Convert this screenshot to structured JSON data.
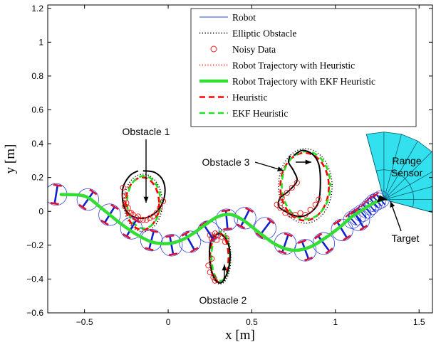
{
  "chart_data": {
    "type": "line",
    "title": "",
    "xlabel": "x [m]",
    "ylabel": "y [m]",
    "xlim": [
      -0.72,
      1.58
    ],
    "ylim": [
      -0.6,
      1.22
    ],
    "xticks": [
      -0.5,
      0,
      0.5,
      1,
      1.5
    ],
    "yticks": [
      -0.6,
      -0.4,
      -0.2,
      0,
      0.2,
      0.4,
      0.6,
      0.8,
      1,
      1.2
    ],
    "xtick_labels": [
      "−0.5",
      "0",
      "0.5",
      "1",
      "1.5"
    ],
    "ytick_labels": [
      "−0.6",
      "−0.4",
      "−0.2",
      "0",
      "0.2",
      "0.4",
      "0.6",
      "0.8",
      "1",
      "1.2"
    ],
    "grid": false,
    "legend_position": "top-right",
    "legend": [
      {
        "label": "Robot",
        "style": "thin-blue-line"
      },
      {
        "label": "Elliptic Obstacle",
        "style": "black-dotted"
      },
      {
        "label": "Noisy Data",
        "style": "red-circle"
      },
      {
        "label": "Robot Trajectory with Heuristic",
        "style": "red-dotted"
      },
      {
        "label": "Robot Trajectory with EKF Heuristic",
        "style": "green-thick"
      },
      {
        "label": "Heuristic",
        "style": "red-dashed"
      },
      {
        "label": "EKF Heuristic",
        "style": "green-dashed"
      }
    ],
    "annotations": [
      {
        "text": "Obstacle 1"
      },
      {
        "text": "Obstacle 2"
      },
      {
        "text": "Obstacle 3"
      },
      {
        "text": "Range"
      },
      {
        "text": "Sensor"
      },
      {
        "text": "Target"
      }
    ],
    "trajectory": {
      "x": [
        -0.64,
        -0.5,
        -0.4,
        -0.3,
        -0.2,
        -0.1,
        0.0,
        0.08,
        0.15,
        0.22,
        0.3,
        0.38,
        0.46,
        0.55,
        0.65,
        0.75,
        0.85,
        0.95,
        1.03,
        1.1,
        1.18,
        1.23,
        1.28
      ],
      "y": [
        0.1,
        0.09,
        0.02,
        -0.06,
        -0.13,
        -0.18,
        -0.19,
        -0.17,
        -0.13,
        -0.08,
        -0.03,
        -0.02,
        -0.06,
        -0.13,
        -0.2,
        -0.23,
        -0.21,
        -0.15,
        -0.09,
        -0.03,
        0.02,
        0.05,
        0.07
      ]
    },
    "robot_positions": {
      "x": [
        -0.67,
        -0.48,
        -0.35,
        -0.22,
        -0.1,
        0.02,
        0.13,
        0.24,
        0.35,
        0.46,
        0.58,
        0.7,
        0.82,
        0.93,
        1.04,
        1.14
      ],
      "y": [
        0.1,
        0.07,
        -0.02,
        -0.1,
        -0.17,
        -0.2,
        -0.18,
        -0.12,
        -0.05,
        -0.04,
        -0.1,
        -0.19,
        -0.23,
        -0.19,
        -0.11,
        -0.05
      ]
    },
    "robot_radius": 0.065,
    "arc_robots": {
      "x": [
        1.1,
        1.13,
        1.16,
        1.19,
        1.21,
        1.23,
        1.25,
        1.27
      ],
      "y": [
        -0.05,
        -0.03,
        -0.01,
        0.01,
        0.03,
        0.05,
        0.06,
        0.07
      ]
    },
    "obstacle1": {
      "center": [
        -0.15,
        0.05
      ],
      "true_shape_x": [
        -0.15,
        -0.08,
        -0.03,
        -0.02,
        -0.05,
        -0.11,
        -0.18,
        -0.24,
        -0.27,
        -0.27,
        -0.23,
        -0.18
      ],
      "true_shape_y": [
        0.24,
        0.23,
        0.18,
        0.1,
        0.02,
        -0.03,
        -0.04,
        -0.01,
        0.05,
        0.14,
        0.21,
        0.24
      ],
      "noisy_x": [
        -0.27,
        -0.26,
        -0.25,
        -0.24,
        -0.23,
        -0.21,
        -0.19,
        -0.17,
        -0.15,
        -0.13,
        -0.11,
        -0.09,
        -0.07,
        -0.05,
        -0.03,
        -0.26,
        -0.22,
        -0.18
      ],
      "noisy_y": [
        0.14,
        0.09,
        0.05,
        0.02,
        -0.01,
        -0.02,
        -0.04,
        -0.05,
        -0.05,
        -0.05,
        -0.04,
        -0.03,
        -0.01,
        0.02,
        0.06,
        0.03,
        -0.01,
        -0.03
      ]
    },
    "obstacle2": {
      "center": [
        0.31,
        -0.27
      ],
      "true_shape_x": [
        0.31,
        0.35,
        0.37,
        0.36,
        0.33,
        0.3,
        0.27,
        0.25,
        0.25,
        0.27,
        0.31
      ],
      "true_shape_y": [
        -0.13,
        -0.17,
        -0.25,
        -0.34,
        -0.41,
        -0.42,
        -0.38,
        -0.3,
        -0.2,
        -0.15,
        -0.13
      ],
      "noisy_x": [
        0.25,
        0.26,
        0.27,
        0.28,
        0.29,
        0.3,
        0.32,
        0.34,
        0.35,
        0.26,
        0.24,
        0.25,
        0.27,
        0.28
      ],
      "noisy_y": [
        -0.14,
        -0.16,
        -0.15,
        -0.13,
        -0.17,
        -0.14,
        -0.15,
        -0.18,
        -0.16,
        -0.28,
        -0.32,
        -0.36,
        -0.39,
        -0.41
      ]
    },
    "obstacle3": {
      "center": [
        0.82,
        0.15
      ],
      "true_shape_x": [
        0.75,
        0.8,
        0.86,
        0.9,
        0.91,
        0.9,
        0.86,
        0.8,
        0.74,
        0.7,
        0.66,
        0.67,
        0.72,
        0.77,
        0.75,
        0.72,
        0.73
      ],
      "true_shape_y": [
        0.33,
        0.36,
        0.34,
        0.28,
        0.18,
        0.06,
        0.0,
        -0.03,
        -0.02,
        0.0,
        0.03,
        0.08,
        0.12,
        0.18,
        0.24,
        0.29,
        0.33
      ],
      "noisy_x": [
        0.67,
        0.7,
        0.73,
        0.76,
        0.79,
        0.82,
        0.85,
        0.88,
        0.9,
        0.65,
        0.68,
        0.71,
        0.74,
        0.77
      ],
      "noisy_y": [
        0.02,
        -0.01,
        -0.02,
        -0.02,
        -0.01,
        -0.02,
        0.01,
        0.04,
        0.07,
        0.04,
        0.08,
        0.11,
        0.14,
        0.17
      ]
    },
    "target": [
      1.29,
      0.07
    ]
  }
}
